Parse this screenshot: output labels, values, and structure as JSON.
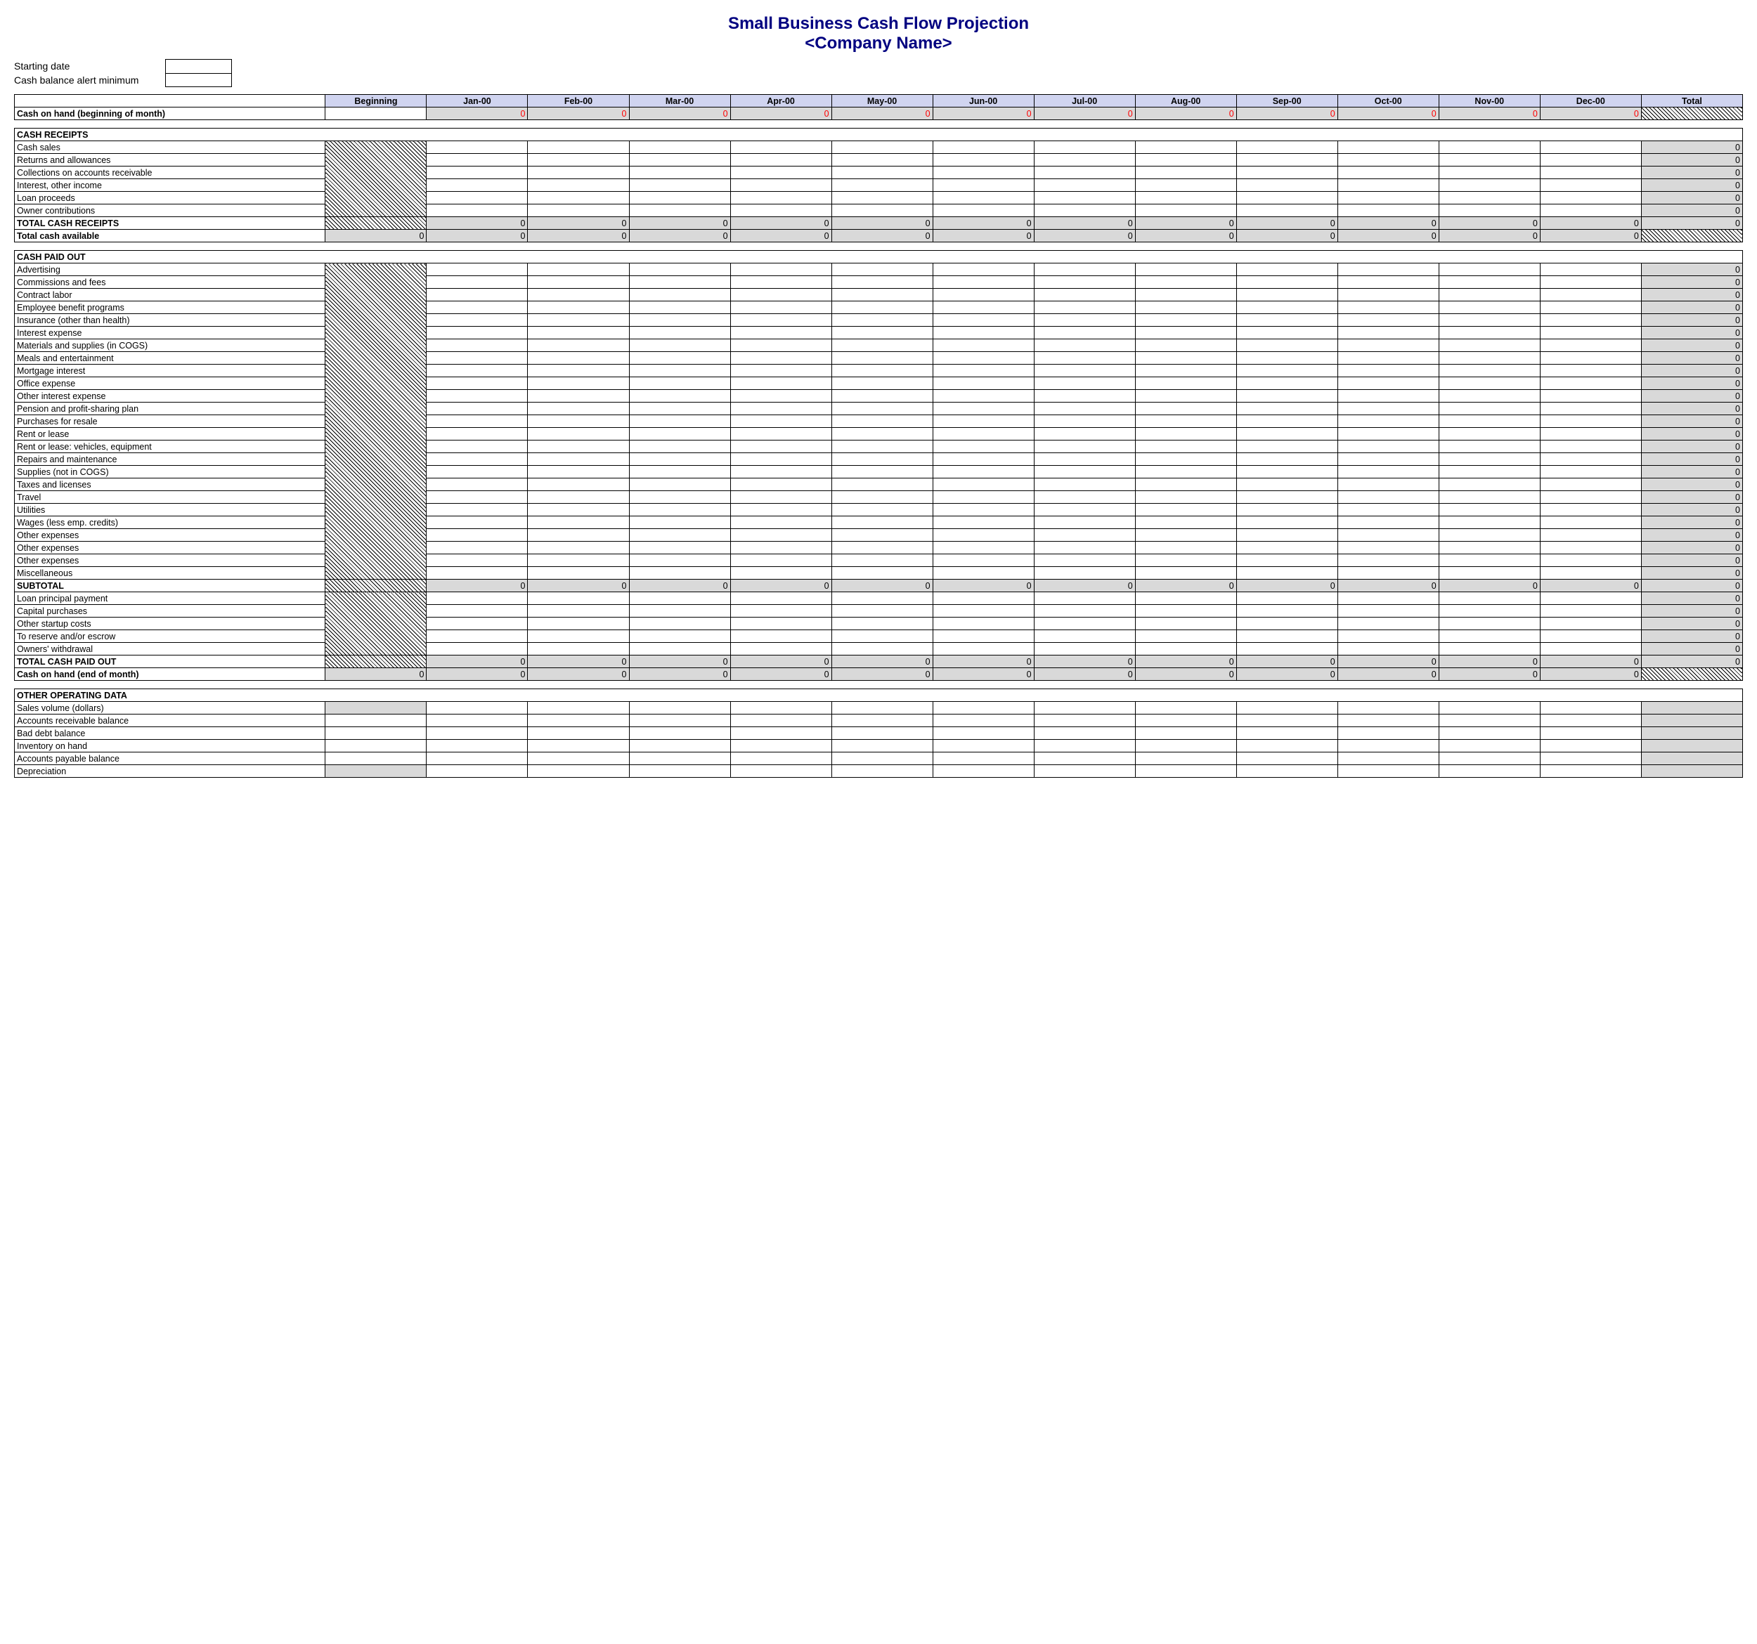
{
  "title": {
    "line1": "Small Business Cash Flow Projection",
    "line2": "<Company Name>"
  },
  "meta": {
    "starting_date_label": "Starting date",
    "alert_min_label": "Cash balance alert minimum",
    "starting_date_value": "",
    "alert_min_value": ""
  },
  "columns": [
    "Beginning",
    "Jan-00",
    "Feb-00",
    "Mar-00",
    "Apr-00",
    "May-00",
    "Jun-00",
    "Jul-00",
    "Aug-00",
    "Sep-00",
    "Oct-00",
    "Nov-00",
    "Dec-00",
    "Total"
  ],
  "styling": {
    "header_bg": "#d0d4f0",
    "gray_bg": "#d9d9d9",
    "title_color": "#000080",
    "red": "#ff0000",
    "border_color": "#000000",
    "font_family": "Arial",
    "title_fontsize": 24,
    "header_fontsize": 14,
    "body_fontsize": 12.5
  },
  "sections": [
    {
      "kind": "cash-on-hand-begin",
      "label": "Cash on hand (beginning of month)",
      "beginning": "",
      "months": [
        "0",
        "0",
        "0",
        "0",
        "0",
        "0",
        "0",
        "0",
        "0",
        "0",
        "0",
        "0"
      ],
      "months_red": true,
      "months_gray": true,
      "total_hatch": true
    },
    {
      "kind": "spacer"
    },
    {
      "kind": "section-header",
      "label": "CASH RECEIPTS"
    },
    {
      "kind": "items",
      "beginning_hatch_whole_block": true,
      "rows": [
        {
          "label": "Cash sales",
          "total": "0",
          "total_gray": true
        },
        {
          "label": "Returns and allowances",
          "total": "0",
          "total_gray": true
        },
        {
          "label": "Collections on accounts receivable",
          "total": "0",
          "total_gray": true
        },
        {
          "label": "Interest, other income",
          "total": "0",
          "total_gray": true
        },
        {
          "label": "Loan proceeds",
          "total": "0",
          "total_gray": true
        },
        {
          "label": "Owner contributions",
          "total": "0",
          "total_gray": true
        }
      ]
    },
    {
      "kind": "total-row",
      "label": "TOTAL CASH RECEIPTS",
      "bold": true,
      "beginning_hatch": true,
      "months": [
        "0",
        "0",
        "0",
        "0",
        "0",
        "0",
        "0",
        "0",
        "0",
        "0",
        "0",
        "0"
      ],
      "months_gray": true,
      "total": "0",
      "total_gray": true
    },
    {
      "kind": "total-row",
      "label": "Total cash available",
      "bold": true,
      "beginning": "0",
      "beginning_gray": true,
      "months": [
        "0",
        "0",
        "0",
        "0",
        "0",
        "0",
        "0",
        "0",
        "0",
        "0",
        "0",
        "0"
      ],
      "months_gray": true,
      "total_hatch": true
    },
    {
      "kind": "spacer"
    },
    {
      "kind": "section-header",
      "label": "CASH PAID OUT"
    },
    {
      "kind": "items",
      "beginning_hatch_whole_block": true,
      "rows": [
        {
          "label": "Advertising",
          "total": "0",
          "total_gray": true
        },
        {
          "label": "Commissions and fees",
          "total": "0",
          "total_gray": true
        },
        {
          "label": "Contract labor",
          "total": "0",
          "total_gray": true
        },
        {
          "label": "Employee benefit programs",
          "total": "0",
          "total_gray": true
        },
        {
          "label": "Insurance (other than health)",
          "total": "0",
          "total_gray": true
        },
        {
          "label": "Interest expense",
          "total": "0",
          "total_gray": true
        },
        {
          "label": "Materials and supplies (in COGS)",
          "total": "0",
          "total_gray": true
        },
        {
          "label": "Meals and entertainment",
          "total": "0",
          "total_gray": true
        },
        {
          "label": "Mortgage interest",
          "total": "0",
          "total_gray": true
        },
        {
          "label": "Office expense",
          "total": "0",
          "total_gray": true
        },
        {
          "label": "Other interest expense",
          "total": "0",
          "total_gray": true
        },
        {
          "label": "Pension and profit-sharing plan",
          "total": "0",
          "total_gray": true
        },
        {
          "label": "Purchases for resale",
          "total": "0",
          "total_gray": true
        },
        {
          "label": "Rent or lease",
          "total": "0",
          "total_gray": true
        },
        {
          "label": "Rent or lease: vehicles, equipment",
          "total": "0",
          "total_gray": true
        },
        {
          "label": "Repairs and maintenance",
          "total": "0",
          "total_gray": true
        },
        {
          "label": "Supplies (not in COGS)",
          "total": "0",
          "total_gray": true
        },
        {
          "label": "Taxes and licenses",
          "total": "0",
          "total_gray": true
        },
        {
          "label": "Travel",
          "total": "0",
          "total_gray": true
        },
        {
          "label": "Utilities",
          "total": "0",
          "total_gray": true
        },
        {
          "label": "Wages (less emp. credits)",
          "total": "0",
          "total_gray": true
        },
        {
          "label": "Other expenses",
          "total": "0",
          "total_gray": true
        },
        {
          "label": "Other expenses",
          "total": "0",
          "total_gray": true
        },
        {
          "label": "Other expenses",
          "total": "0",
          "total_gray": true
        },
        {
          "label": "Miscellaneous",
          "total": "0",
          "total_gray": true
        }
      ]
    },
    {
      "kind": "total-row",
      "label": "SUBTOTAL",
      "bold": true,
      "beginning_hatch": true,
      "months": [
        "0",
        "0",
        "0",
        "0",
        "0",
        "0",
        "0",
        "0",
        "0",
        "0",
        "0",
        "0"
      ],
      "months_gray": true,
      "total": "0",
      "total_gray": true
    },
    {
      "kind": "items",
      "beginning_hatch_whole_block": true,
      "rows": [
        {
          "label": "Loan principal payment",
          "total": "0",
          "total_gray": true
        },
        {
          "label": "Capital purchases",
          "total": "0",
          "total_gray": true
        },
        {
          "label": "Other startup costs",
          "total": "0",
          "total_gray": true
        },
        {
          "label": "To reserve and/or escrow",
          "total": "0",
          "total_gray": true
        },
        {
          "label": "Owners' withdrawal",
          "total": "0",
          "total_gray": true
        }
      ]
    },
    {
      "kind": "total-row",
      "label": "TOTAL CASH PAID OUT",
      "bold": true,
      "beginning_hatch": true,
      "months": [
        "0",
        "0",
        "0",
        "0",
        "0",
        "0",
        "0",
        "0",
        "0",
        "0",
        "0",
        "0"
      ],
      "months_gray": true,
      "total": "0",
      "total_gray": true
    },
    {
      "kind": "total-row",
      "label": "Cash on hand (end of month)",
      "bold": true,
      "beginning": "0",
      "beginning_gray": true,
      "months": [
        "0",
        "0",
        "0",
        "0",
        "0",
        "0",
        "0",
        "0",
        "0",
        "0",
        "0",
        "0"
      ],
      "months_gray": true,
      "total_hatch": true
    },
    {
      "kind": "spacer"
    },
    {
      "kind": "section-header",
      "label": "OTHER OPERATING DATA"
    },
    {
      "kind": "items",
      "rows": [
        {
          "label": "Sales volume (dollars)",
          "beginning_gray": true,
          "total_gray": true
        },
        {
          "label": "Accounts receivable balance",
          "total_gray": true
        },
        {
          "label": "Bad debt balance",
          "total_gray": true
        },
        {
          "label": "Inventory on hand",
          "total_gray": true
        },
        {
          "label": "Accounts payable balance",
          "total_gray": true
        },
        {
          "label": "Depreciation",
          "beginning_gray": true,
          "total_gray": true
        }
      ]
    }
  ]
}
